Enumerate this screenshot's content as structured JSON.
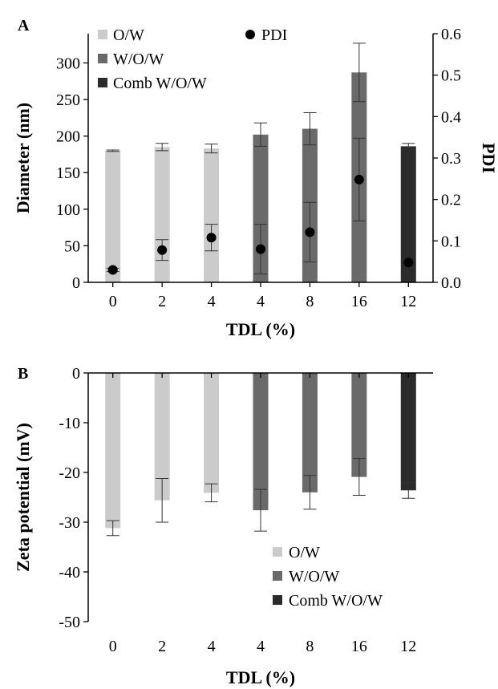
{
  "colors": {
    "ow": "#cbcbcb",
    "wow": "#6a6a6a",
    "comb": "#2b2b2b",
    "pdi": "#000000",
    "axis": "#000000"
  },
  "chart_data": [
    {
      "panel_label": "A",
      "type": "bar",
      "categories": [
        "0",
        "2",
        "4",
        "4",
        "8",
        "16",
        "12"
      ],
      "xlabel": "TDL (%)",
      "ylabel": "Diameter (nm)",
      "ylim": [
        0,
        340
      ],
      "yticks": [
        0,
        50,
        100,
        150,
        200,
        250,
        300
      ],
      "y2label": "PDI",
      "y2lim": [
        0,
        0.6
      ],
      "y2ticks": [
        "0.0",
        "0.1",
        "0.2",
        "0.3",
        "0.4",
        "0.5",
        "0.6"
      ],
      "legend_position": "top-left",
      "series": [
        {
          "name": "O/W",
          "color_key": "ow",
          "indices": [
            0,
            1,
            2
          ]
        },
        {
          "name": "W/O/W",
          "color_key": "wow",
          "indices": [
            3,
            4,
            5
          ]
        },
        {
          "name": "Comb W/O/W",
          "color_key": "comb",
          "indices": [
            6
          ]
        }
      ],
      "values": [
        180,
        185,
        183,
        202,
        210,
        287,
        186
      ],
      "errors": [
        1,
        5,
        6,
        16,
        22,
        40,
        4
      ],
      "pdi_series": {
        "name": "PDI",
        "values": [
          0.03,
          0.078,
          0.108,
          0.08,
          0.121,
          0.248,
          0.048
        ],
        "errors": [
          0.004,
          0.025,
          0.032,
          0.06,
          0.072,
          0.1,
          0.004
        ]
      }
    },
    {
      "panel_label": "B",
      "type": "bar",
      "categories": [
        "0",
        "2",
        "4",
        "4",
        "8",
        "16",
        "12"
      ],
      "xlabel": "TDL (%)",
      "ylabel": "Zeta potential (mV)",
      "ylim": [
        -50,
        0
      ],
      "yticks": [
        0,
        -10,
        -20,
        -30,
        -40,
        -50
      ],
      "legend_position": "bottom-right",
      "series": [
        {
          "name": "O/W",
          "color_key": "ow",
          "indices": [
            0,
            1,
            2
          ]
        },
        {
          "name": "W/O/W",
          "color_key": "wow",
          "indices": [
            3,
            4,
            5
          ]
        },
        {
          "name": "Comb W/O/W",
          "color_key": "comb",
          "indices": [
            6
          ]
        }
      ],
      "values": [
        -31.2,
        -25.6,
        -24.1,
        -27.6,
        -24.0,
        -20.9,
        -23.6
      ],
      "errors": [
        1.5,
        4.4,
        1.8,
        4.2,
        3.4,
        3.7,
        1.6
      ]
    }
  ]
}
